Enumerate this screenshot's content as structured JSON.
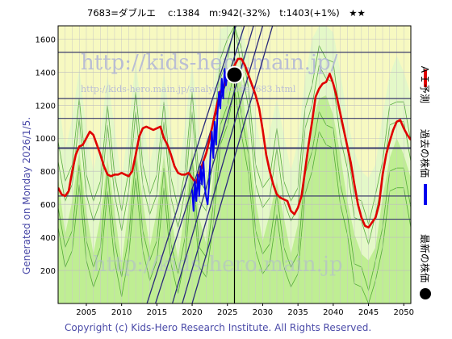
{
  "chart_data": {
    "type": "line",
    "title": "7683=ダブルエ　 c:1384　m:942(-32%)　t:1403(+1%)　★★",
    "side_label": "Generated on Monday 2026/1/5.",
    "legend": [
      {
        "name": "ＡＩ予測",
        "color": "#e00000"
      },
      {
        "name": "過去の株価",
        "color": "#0000ee"
      },
      {
        "name": "最新の株価",
        "color": "#000000"
      }
    ],
    "watermarks": [
      "http://kids-hero.main.jp/",
      "http://kids-hero.main.jp/analysis/code7683.html",
      "http://kids-hero.main.jp"
    ],
    "footer": "Copyright (c) Kids-Hero Research Institute. All Rights Reserved.",
    "xlim": [
      2001,
      2051
    ],
    "ylim": [
      0,
      1680
    ],
    "x_ticks": [
      2005,
      2010,
      2015,
      2020,
      2025,
      2030,
      2035,
      2040,
      2045,
      2050
    ],
    "y_ticks": [
      200,
      400,
      600,
      800,
      1000,
      1200,
      1400,
      1600
    ],
    "horizontal_lines": [
      1520,
      1240,
      1120,
      940,
      650,
      510
    ],
    "current_year_line": 2026,
    "latest_price": {
      "x": 2026.0,
      "y": 1384
    },
    "ai_forecast": [
      [
        2001.0,
        700
      ],
      [
        2001.5,
        660
      ],
      [
        2002.0,
        650
      ],
      [
        2002.5,
        680
      ],
      [
        2003.0,
        800
      ],
      [
        2003.5,
        900
      ],
      [
        2004.0,
        950
      ],
      [
        2004.5,
        960
      ],
      [
        2005.0,
        1000
      ],
      [
        2005.5,
        1040
      ],
      [
        2006.0,
        1020
      ],
      [
        2006.5,
        960
      ],
      [
        2007.0,
        900
      ],
      [
        2007.5,
        830
      ],
      [
        2008.0,
        780
      ],
      [
        2008.5,
        770
      ],
      [
        2009.0,
        780
      ],
      [
        2009.5,
        780
      ],
      [
        2010.0,
        790
      ],
      [
        2010.5,
        780
      ],
      [
        2011.0,
        770
      ],
      [
        2011.5,
        800
      ],
      [
        2012.0,
        900
      ],
      [
        2012.5,
        1010
      ],
      [
        2013.0,
        1060
      ],
      [
        2013.5,
        1070
      ],
      [
        2014.0,
        1060
      ],
      [
        2014.5,
        1050
      ],
      [
        2015.0,
        1060
      ],
      [
        2015.5,
        1070
      ],
      [
        2016.0,
        1000
      ],
      [
        2016.5,
        960
      ],
      [
        2017.0,
        900
      ],
      [
        2017.5,
        830
      ],
      [
        2018.0,
        790
      ],
      [
        2018.5,
        780
      ],
      [
        2019.0,
        780
      ],
      [
        2019.5,
        790
      ],
      [
        2020.0,
        760
      ],
      [
        2020.5,
        730
      ],
      [
        2021.0,
        780
      ],
      [
        2021.5,
        850
      ],
      [
        2022.0,
        910
      ],
      [
        2022.5,
        1000
      ],
      [
        2023.0,
        1100
      ],
      [
        2023.5,
        1200
      ],
      [
        2024.0,
        1280
      ],
      [
        2024.5,
        1320
      ],
      [
        2025.0,
        1360
      ],
      [
        2025.5,
        1400
      ],
      [
        2026.0,
        1440
      ],
      [
        2026.5,
        1480
      ],
      [
        2027.0,
        1480
      ],
      [
        2027.5,
        1440
      ],
      [
        2028.0,
        1380
      ],
      [
        2028.5,
        1320
      ],
      [
        2029.0,
        1260
      ],
      [
        2029.5,
        1180
      ],
      [
        2030.0,
        1050
      ],
      [
        2030.5,
        900
      ],
      [
        2031.0,
        800
      ],
      [
        2031.5,
        720
      ],
      [
        2032.0,
        660
      ],
      [
        2032.5,
        640
      ],
      [
        2033.0,
        630
      ],
      [
        2033.5,
        620
      ],
      [
        2034.0,
        560
      ],
      [
        2034.5,
        540
      ],
      [
        2035.0,
        580
      ],
      [
        2035.5,
        650
      ],
      [
        2036.0,
        800
      ],
      [
        2036.5,
        960
      ],
      [
        2037.0,
        1100
      ],
      [
        2037.5,
        1250
      ],
      [
        2038.0,
        1300
      ],
      [
        2038.5,
        1330
      ],
      [
        2039.0,
        1340
      ],
      [
        2039.5,
        1390
      ],
      [
        2040.0,
        1330
      ],
      [
        2040.5,
        1250
      ],
      [
        2041.0,
        1150
      ],
      [
        2041.5,
        1050
      ],
      [
        2042.0,
        950
      ],
      [
        2042.5,
        850
      ],
      [
        2043.0,
        720
      ],
      [
        2043.5,
        600
      ],
      [
        2044.0,
        520
      ],
      [
        2044.5,
        470
      ],
      [
        2045.0,
        460
      ],
      [
        2045.5,
        490
      ],
      [
        2046.0,
        520
      ],
      [
        2046.5,
        600
      ],
      [
        2047.0,
        780
      ],
      [
        2047.5,
        900
      ],
      [
        2048.0,
        980
      ],
      [
        2048.5,
        1050
      ],
      [
        2049.0,
        1100
      ],
      [
        2049.5,
        1110
      ],
      [
        2050.0,
        1060
      ],
      [
        2050.5,
        1020
      ],
      [
        2051.0,
        990
      ]
    ],
    "past_price": [
      [
        2020.0,
        690
      ],
      [
        2020.2,
        560
      ],
      [
        2020.4,
        740
      ],
      [
        2020.6,
        620
      ],
      [
        2020.8,
        780
      ],
      [
        2021.0,
        650
      ],
      [
        2021.2,
        830
      ],
      [
        2021.4,
        720
      ],
      [
        2021.6,
        860
      ],
      [
        2021.8,
        700
      ],
      [
        2022.0,
        640
      ],
      [
        2022.2,
        600
      ],
      [
        2022.4,
        720
      ],
      [
        2022.6,
        900
      ],
      [
        2022.8,
        1040
      ],
      [
        2023.0,
        880
      ],
      [
        2023.2,
        1100
      ],
      [
        2023.4,
        960
      ],
      [
        2023.6,
        1150
      ],
      [
        2023.8,
        1280
      ],
      [
        2024.0,
        1180
      ],
      [
        2024.2,
        1360
      ],
      [
        2024.4,
        1240
      ],
      [
        2024.6,
        1420
      ],
      [
        2024.8,
        1320
      ],
      [
        2025.0,
        1400
      ],
      [
        2025.2,
        1360
      ],
      [
        2025.4,
        1380
      ],
      [
        2025.6,
        1360
      ],
      [
        2025.8,
        1384
      ]
    ],
    "green_band": [
      [
        2001,
        760
      ],
      [
        2002,
        420
      ],
      [
        2003,
        620
      ],
      [
        2004,
        920
      ],
      [
        2005,
        560
      ],
      [
        2006,
        300
      ],
      [
        2007,
        520
      ],
      [
        2008,
        880
      ],
      [
        2009,
        560
      ],
      [
        2010,
        240
      ],
      [
        2011,
        580
      ],
      [
        2012,
        960
      ],
      [
        2013,
        620
      ],
      [
        2014,
        340
      ],
      [
        2015,
        560
      ],
      [
        2016,
        900
      ],
      [
        2017,
        540
      ],
      [
        2018,
        260
      ],
      [
        2019,
        580
      ],
      [
        2020,
        960
      ],
      [
        2021,
        520
      ],
      [
        2022,
        360
      ],
      [
        2023,
        780
      ],
      [
        2024,
        1160
      ],
      [
        2025,
        1380
      ],
      [
        2026,
        1500
      ],
      [
        2027,
        1320
      ],
      [
        2028,
        980
      ],
      [
        2029,
        620
      ],
      [
        2030,
        380
      ],
      [
        2031,
        540
      ],
      [
        2032,
        740
      ],
      [
        2033,
        520
      ],
      [
        2034,
        300
      ],
      [
        2035,
        480
      ],
      [
        2036,
        860
      ],
      [
        2037,
        1100
      ],
      [
        2038,
        1240
      ],
      [
        2039,
        1260
      ],
      [
        2040,
        1140
      ],
      [
        2041,
        900
      ],
      [
        2042,
        620
      ],
      [
        2043,
        420
      ],
      [
        2044,
        300
      ],
      [
        2045,
        260
      ],
      [
        2046,
        340
      ],
      [
        2047,
        640
      ],
      [
        2048,
        880
      ],
      [
        2049,
        1000
      ],
      [
        2050,
        900
      ],
      [
        2051,
        760
      ]
    ],
    "trend_lines": [
      [
        [
          2013.6,
          0
        ],
        [
          2026.2,
          1680
        ]
      ],
      [
        [
          2014.8,
          0
        ],
        [
          2027.4,
          1680
        ]
      ],
      [
        [
          2017.2,
          0
        ],
        [
          2028.7,
          1680
        ]
      ],
      [
        [
          2018.6,
          0
        ],
        [
          2030.0,
          1680
        ]
      ],
      [
        [
          2020.0,
          0
        ],
        [
          2031.4,
          1680
        ]
      ]
    ]
  }
}
